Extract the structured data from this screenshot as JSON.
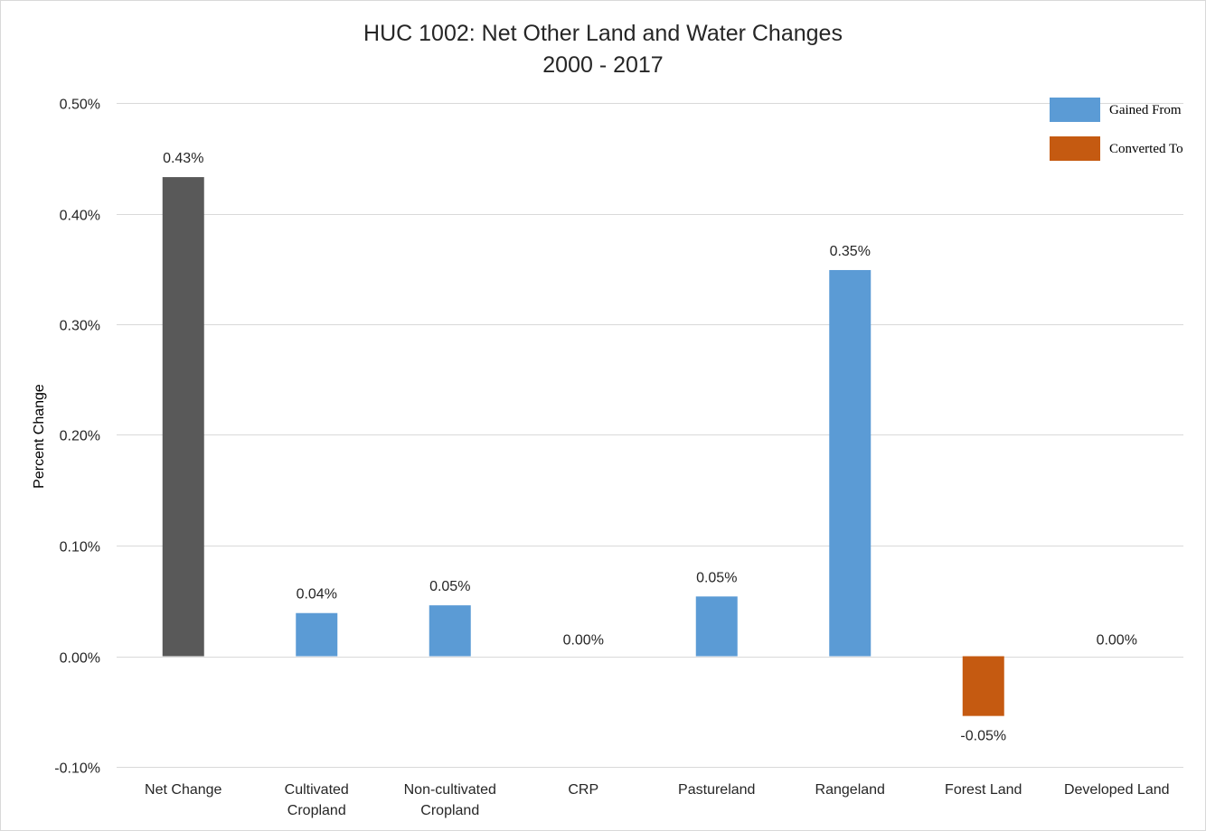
{
  "chart_data": {
    "type": "bar",
    "title": "HUC 1002: Net Other Land and Water Changes",
    "subtitle": "2000 - 2017",
    "xlabel": "",
    "ylabel": "Percent Change",
    "ylim": [
      -0.1,
      0.5
    ],
    "yticks": [
      {
        "value": 0.5,
        "label": "0.50%"
      },
      {
        "value": 0.4,
        "label": "0.40%"
      },
      {
        "value": 0.3,
        "label": "0.30%"
      },
      {
        "value": 0.2,
        "label": "0.20%"
      },
      {
        "value": 0.1,
        "label": "0.10%"
      },
      {
        "value": 0.0,
        "label": "0.00%"
      },
      {
        "value": -0.1,
        "label": "-0.10%"
      }
    ],
    "grid": true,
    "legend_position": "top-right",
    "categories": [
      [
        "Net Change"
      ],
      [
        "Cultivated",
        "Cropland"
      ],
      [
        "Non-cultivated",
        "Cropland"
      ],
      [
        "CRP"
      ],
      [
        "Pastureland"
      ],
      [
        "Rangeland"
      ],
      [
        "Forest Land"
      ],
      [
        "Developed Land"
      ]
    ],
    "values": [
      0.433,
      0.039,
      0.046,
      0.0,
      0.054,
      0.349,
      -0.054,
      0.0
    ],
    "data_labels": [
      "0.43%",
      "0.04%",
      "0.05%",
      "0.00%",
      "0.05%",
      "0.35%",
      "-0.05%",
      "0.00%"
    ],
    "bar_kinds": [
      "net",
      "gained",
      "gained",
      "gained",
      "gained",
      "gained",
      "converted",
      "gained"
    ],
    "legend": [
      {
        "key": "gained",
        "label": "Gained From",
        "color": "#5b9bd5"
      },
      {
        "key": "converted",
        "label": "Converted To",
        "color": "#c55a11"
      }
    ],
    "colors": {
      "net": "#595959",
      "gained": "#5b9bd5",
      "converted": "#c55a11",
      "grid": "#d9d9d9"
    }
  }
}
